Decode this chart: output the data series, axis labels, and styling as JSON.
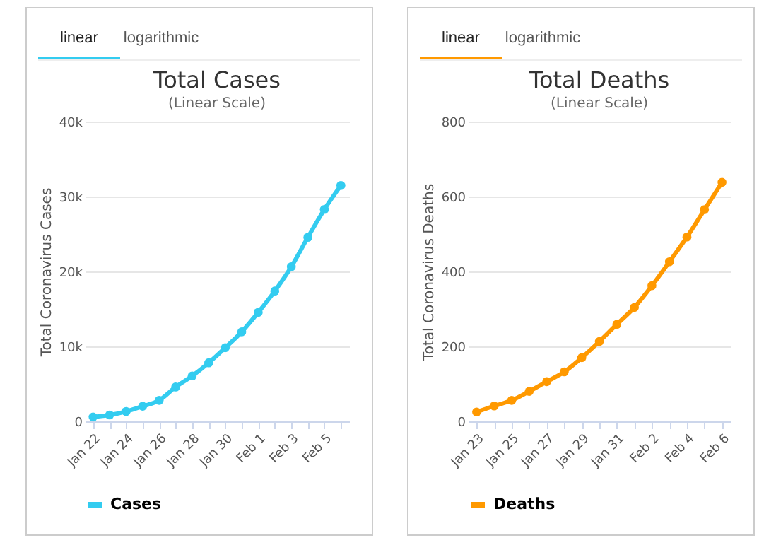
{
  "chart_data": [
    {
      "type": "line",
      "title": "Total Cases",
      "subtitle": "(Linear Scale)",
      "ylabel": "Total Coronavirus Cases",
      "annotations": [
        "linear",
        "logarithmic"
      ],
      "categories": [
        "Jan 22",
        null,
        "Jan 24",
        null,
        "Jan 26",
        null,
        "Jan 28",
        null,
        "Jan 30",
        null,
        "Feb 1",
        null,
        "Feb 3",
        null,
        "Feb 5",
        null
      ],
      "series": [
        {
          "name": "Cases",
          "color": "#33ccf0",
          "values": [
            580,
            845,
            1317,
            2015,
            2800,
            4581,
            6058,
            7813,
            9821,
            11948,
            14551,
            17389,
            20628,
            24553,
            28276,
            31481
          ]
        }
      ],
      "ylim": [
        0,
        40000
      ],
      "yticks": [
        {
          "value": 0,
          "label": "0"
        },
        {
          "value": 10000,
          "label": "10k"
        },
        {
          "value": 20000,
          "label": "20k"
        },
        {
          "value": 30000,
          "label": "30k"
        },
        {
          "value": 40000,
          "label": "40k"
        }
      ],
      "grid": "y",
      "legend": "bottom",
      "marker": "circle"
    },
    {
      "type": "line",
      "title": "Total Deaths",
      "subtitle": "(Linear Scale)",
      "ylabel": "Total Coronavirus Deaths",
      "annotations": [
        "linear",
        "logarithmic"
      ],
      "categories": [
        "Jan 23",
        null,
        "Jan 25",
        null,
        "Jan 27",
        null,
        "Jan 29",
        null,
        "Jan 31",
        null,
        "Feb 2",
        null,
        "Feb 4",
        null,
        "Feb 6"
      ],
      "series": [
        {
          "name": "Deaths",
          "color": "#ff9900",
          "values": [
            25,
            41,
            56,
            80,
            106,
            132,
            170,
            213,
            259,
            304,
            362,
            426,
            492,
            565,
            638
          ]
        }
      ],
      "ylim": [
        0,
        800
      ],
      "yticks": [
        0,
        200,
        400,
        600,
        800
      ],
      "grid": "y",
      "legend": "bottom",
      "marker": "circle"
    }
  ]
}
